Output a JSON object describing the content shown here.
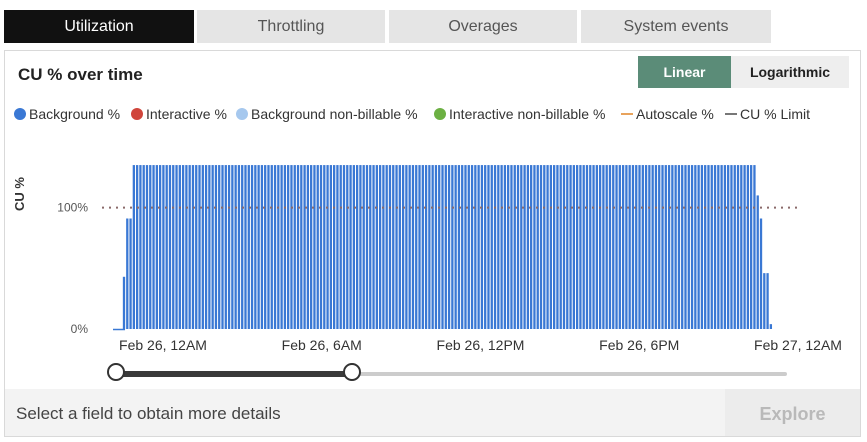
{
  "tabs": [
    {
      "label": "Utilization",
      "active": true
    },
    {
      "label": "Throttling",
      "active": false
    },
    {
      "label": "Overages",
      "active": false
    },
    {
      "label": "System events",
      "active": false
    }
  ],
  "panel": {
    "title": "CU % over time",
    "scale_toggle": {
      "linear": "Linear",
      "logarithmic": "Logarithmic",
      "selected": "Linear"
    }
  },
  "legend": [
    {
      "label": "Background %",
      "color": "#3a78d4",
      "marker": "dot"
    },
    {
      "label": "Interactive %",
      "color": "#d0453b",
      "marker": "dot"
    },
    {
      "label": "Background non-billable %",
      "color": "#a6c8ee",
      "marker": "dot"
    },
    {
      "label": "Interactive non-billable %",
      "color": "#6cb043",
      "marker": "dot"
    },
    {
      "label": "Autoscale %",
      "color": "#e8a35c",
      "marker": "line"
    },
    {
      "label": "CU % Limit",
      "color": "#777777",
      "marker": "line"
    }
  ],
  "chart_data": {
    "type": "bar",
    "title": "CU % over time",
    "ylabel": "CU %",
    "xlabel": "",
    "y_ticks": [
      "0%",
      "100%"
    ],
    "x_ticks": [
      "Feb 26, 12AM",
      "Feb 26, 6AM",
      "Feb 26, 12PM",
      "Feb 26, 6PM",
      "Feb 27, 12AM"
    ],
    "x_range": [
      "Feb 26, 12AM",
      "Feb 27, 12AM"
    ],
    "ylim": [
      0,
      140
    ],
    "limit_line": 100,
    "series": [
      {
        "name": "Background %",
        "color": "#3a78d4",
        "values": [
          0,
          0,
          0,
          43,
          91,
          91,
          135,
          135,
          135,
          135,
          135,
          135,
          135,
          135,
          135,
          135,
          135,
          135,
          135,
          135,
          135,
          135,
          135,
          135,
          135,
          135,
          135,
          135,
          135,
          135,
          135,
          135,
          135,
          135,
          135,
          135,
          135,
          135,
          135,
          135,
          135,
          135,
          135,
          135,
          135,
          135,
          135,
          135,
          135,
          135,
          135,
          135,
          135,
          135,
          135,
          135,
          135,
          135,
          135,
          135,
          135,
          135,
          135,
          135,
          135,
          135,
          135,
          135,
          135,
          135,
          135,
          135,
          135,
          135,
          135,
          135,
          135,
          135,
          135,
          135,
          135,
          135,
          135,
          135,
          135,
          135,
          135,
          135,
          135,
          135,
          135,
          135,
          135,
          135,
          135,
          135,
          135,
          135,
          135,
          135,
          135,
          135,
          135,
          135,
          135,
          135,
          135,
          135,
          135,
          135,
          135,
          135,
          135,
          135,
          135,
          135,
          135,
          135,
          135,
          135,
          135,
          135,
          135,
          135,
          135,
          135,
          135,
          135,
          135,
          135,
          135,
          135,
          135,
          135,
          135,
          135,
          135,
          135,
          135,
          135,
          135,
          135,
          135,
          135,
          135,
          135,
          135,
          135,
          135,
          135,
          135,
          135,
          135,
          135,
          135,
          135,
          135,
          135,
          135,
          135,
          135,
          135,
          135,
          135,
          135,
          135,
          135,
          135,
          135,
          135,
          135,
          135,
          135,
          135,
          135,
          135,
          135,
          135,
          135,
          135,
          135,
          135,
          135,
          135,
          135,
          135,
          135,
          135,
          135,
          135,
          135,
          135,
          135,
          135,
          135,
          135,
          110,
          91,
          46,
          46,
          4
        ]
      }
    ],
    "grid": false,
    "legend_position": "top-left"
  },
  "footer": {
    "hint": "Select a field to obtain more details",
    "explore_label": "Explore"
  }
}
